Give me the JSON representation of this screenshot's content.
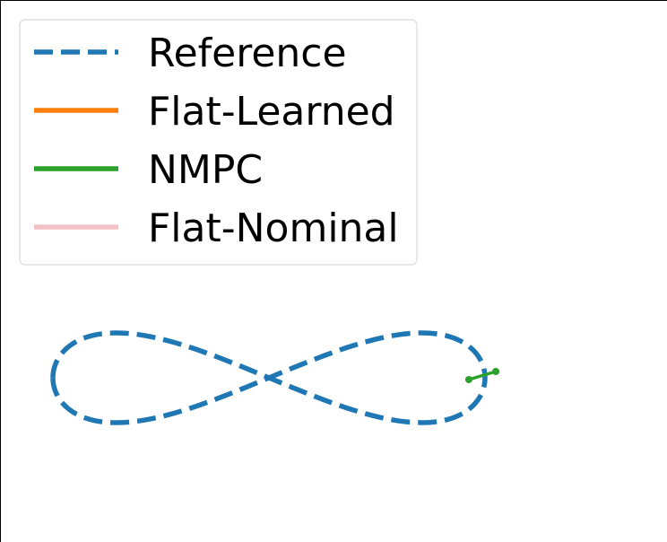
{
  "chart_data": {
    "type": "line",
    "title": "",
    "xlabel": "",
    "ylabel": "",
    "axes_visible": false,
    "grid": false,
    "legend_position": "top-left",
    "series": [
      {
        "name": "Reference",
        "style": "dashed",
        "color": "#1f77b4",
        "shape": "figure-eight",
        "x": [
          -1.0,
          -0.924,
          -0.707,
          -0.383,
          0.0,
          0.383,
          0.707,
          0.924,
          1.0,
          0.924,
          0.707,
          0.383,
          0.0,
          -0.383,
          -0.707,
          -0.924,
          -1.0
        ],
        "y": [
          0.0,
          -0.354,
          -0.5,
          -0.354,
          0.0,
          0.354,
          0.5,
          0.354,
          0.0,
          -0.354,
          -0.5,
          -0.354,
          0.0,
          0.354,
          0.5,
          0.354,
          0.0
        ]
      },
      {
        "name": "Flat-Learned",
        "style": "solid",
        "color": "#ff7f0e",
        "x": [],
        "y": []
      },
      {
        "name": "NMPC",
        "style": "solid-markers",
        "color": "#2ca02c",
        "x": [
          0.925,
          1.05
        ],
        "y": [
          -0.02,
          0.07
        ]
      },
      {
        "name": "Flat-Nominal",
        "style": "solid",
        "color": "#f4c2c6",
        "x": [],
        "y": []
      }
    ]
  },
  "legend": {
    "entries": [
      {
        "label": "Reference",
        "color": "#1f77b4",
        "style": "dashed"
      },
      {
        "label": "Flat-Learned",
        "color": "#ff7f0e",
        "style": "solid"
      },
      {
        "label": "NMPC",
        "color": "#2ca02c",
        "style": "solid"
      },
      {
        "label": "Flat-Nominal",
        "color": "#f4c2c6",
        "style": "solid"
      }
    ]
  }
}
